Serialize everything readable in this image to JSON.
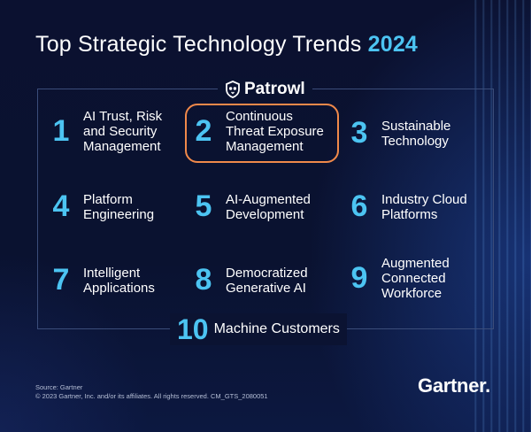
{
  "title": {
    "text": "Top Strategic Technology Trends",
    "year": "2024"
  },
  "logo": {
    "text": "Patrowl",
    "icon": "patrowl-shield-icon"
  },
  "trends": [
    {
      "number": "1",
      "label": "AI Trust, Risk\nand Security\nManagement"
    },
    {
      "number": "2",
      "label": "Continuous\nThreat Exposure\nManagement",
      "highlighted": true
    },
    {
      "number": "3",
      "label": "Sustainable\nTechnology"
    },
    {
      "number": "4",
      "label": "Platform\nEngineering"
    },
    {
      "number": "5",
      "label": "AI-Augmented\nDevelopment"
    },
    {
      "number": "6",
      "label": "Industry Cloud\nPlatforms"
    },
    {
      "number": "7",
      "label": "Intelligent\nApplications"
    },
    {
      "number": "8",
      "label": "Democratized\nGenerative AI"
    },
    {
      "number": "9",
      "label": "Augmented\nConnected\nWorkforce"
    },
    {
      "number": "10",
      "label": "Machine Customers"
    }
  ],
  "footer": {
    "source": "Source: Gartner",
    "copyright": "© 2023 Gartner, Inc. and/or its affiliates. All rights reserved. CM_GTS_2080051",
    "brand": "Gartner."
  },
  "colors": {
    "background": "#0a1028",
    "accent": "#4cc4f2",
    "highlight_border": "#f0894a",
    "text": "#ffffff"
  }
}
